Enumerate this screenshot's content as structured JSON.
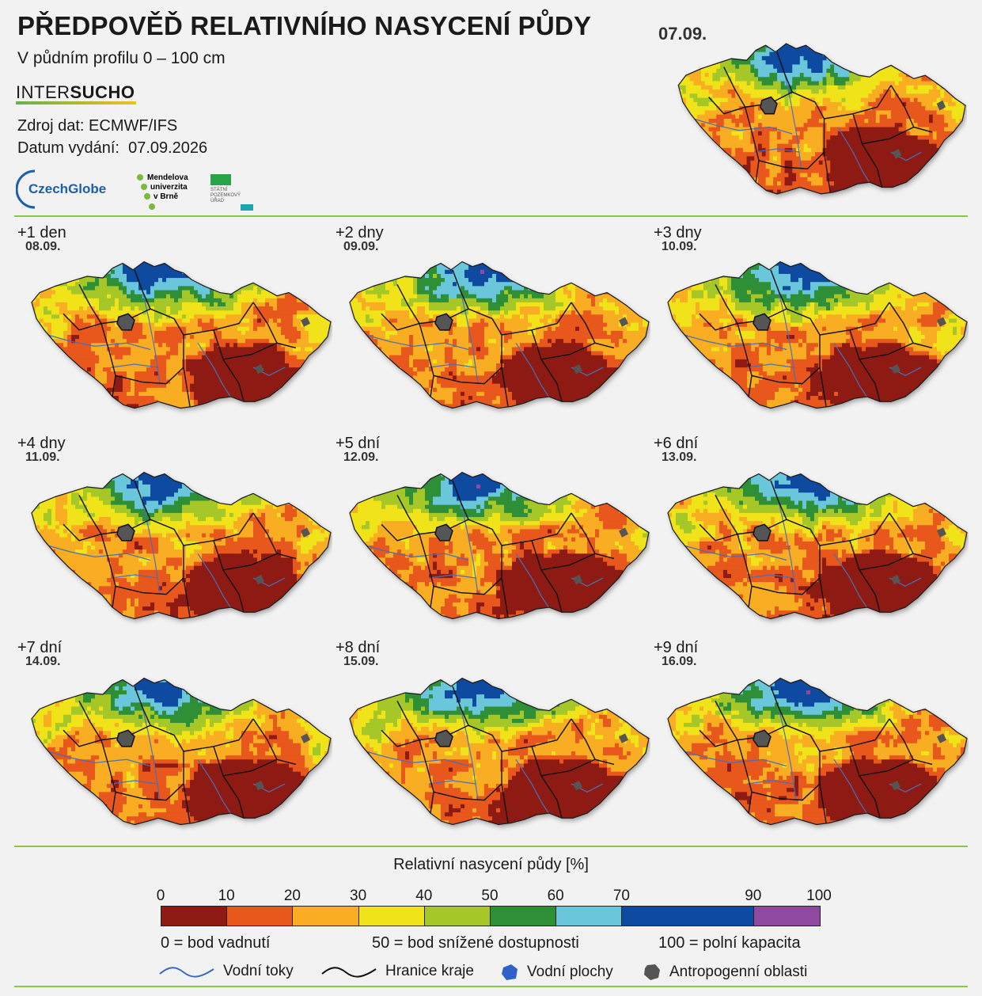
{
  "header": {
    "title": "PŘEDPOVĚĎ RELATIVNÍHO NASYCENÍ PŮDY",
    "subtitle": "V půdním profilu 0 – 100 cm",
    "brand_a": "INTER",
    "brand_b": "SUCHO",
    "source": "Zdroj dat: ECMWF/IFS",
    "issued_label": "Datum vydání:",
    "issued_date": "07.09.2026"
  },
  "logos": {
    "czechglobe": "CzechGlobe",
    "mendel": [
      "Mendelova",
      "univerzita",
      "v Brně"
    ],
    "spu": [
      "STÁTNÍ",
      "POZEMKOVÝ",
      "ÚŘAD"
    ]
  },
  "main_map": {
    "date": "07.09."
  },
  "panels": [
    {
      "label": "+1 den",
      "date": "08.09."
    },
    {
      "label": "+2 dny",
      "date": "09.09."
    },
    {
      "label": "+3 dny",
      "date": "10.09."
    },
    {
      "label": "+4 dny",
      "date": "11.09."
    },
    {
      "label": "+5 dní",
      "date": "12.09."
    },
    {
      "label": "+6 dní",
      "date": "13.09."
    },
    {
      "label": "+7 dní",
      "date": "14.09."
    },
    {
      "label": "+8 dní",
      "date": "15.09."
    },
    {
      "label": "+9 dní",
      "date": "16.09."
    }
  ],
  "legend": {
    "title": "Relativní nasycení půdy [%]",
    "ticks": [
      "0",
      "10",
      "20",
      "30",
      "40",
      "50",
      "60",
      "70",
      "90",
      "100"
    ],
    "bins": [
      {
        "from": 0,
        "to": 10,
        "color": "#8e1b13"
      },
      {
        "from": 10,
        "to": 20,
        "color": "#e8571c"
      },
      {
        "from": 20,
        "to": 30,
        "color": "#f8ad22"
      },
      {
        "from": 30,
        "to": 40,
        "color": "#f0e31a"
      },
      {
        "from": 40,
        "to": 50,
        "color": "#a5c728"
      },
      {
        "from": 50,
        "to": 60,
        "color": "#2f8f36"
      },
      {
        "from": 60,
        "to": 70,
        "color": "#6ac6db"
      },
      {
        "from": 70,
        "to": 90,
        "color": "#0f4aa1"
      },
      {
        "from": 90,
        "to": 100,
        "color": "#8d4aa0"
      }
    ],
    "note_left": "0 = bod vadnutí",
    "note_mid": "50 = bod snížené dostupnosti",
    "note_right": "100 = polní kapacita",
    "items": {
      "rivers": "Vodní toky",
      "borders": "Hranice kraje",
      "water": "Vodní plochy",
      "urban": "Antropogenní oblasti"
    }
  }
}
